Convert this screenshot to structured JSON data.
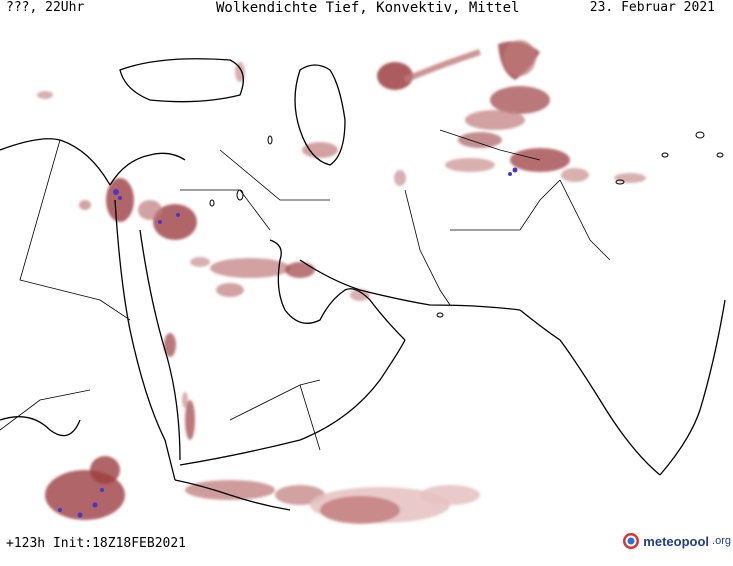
{
  "header": {
    "left": "???, 22Uhr",
    "title": "Wolkendichte   Tief, Konvektiv, Mittel",
    "date": "23. Februar 2021"
  },
  "footer": {
    "run_info": "+123h Init:18Z18FEB2021",
    "logo_main": "meteopool",
    "logo_suffix": ".org"
  },
  "colors": {
    "cloud_light": "#e7c3c3",
    "cloud_mid": "#bf7b7b",
    "cloud_dark": "#9c3f42",
    "convective": "#4a36c8",
    "coastline": "#000000",
    "border": "#000000",
    "background": "#ffffff"
  },
  "legend_icon": "meteopool-globe-icon"
}
